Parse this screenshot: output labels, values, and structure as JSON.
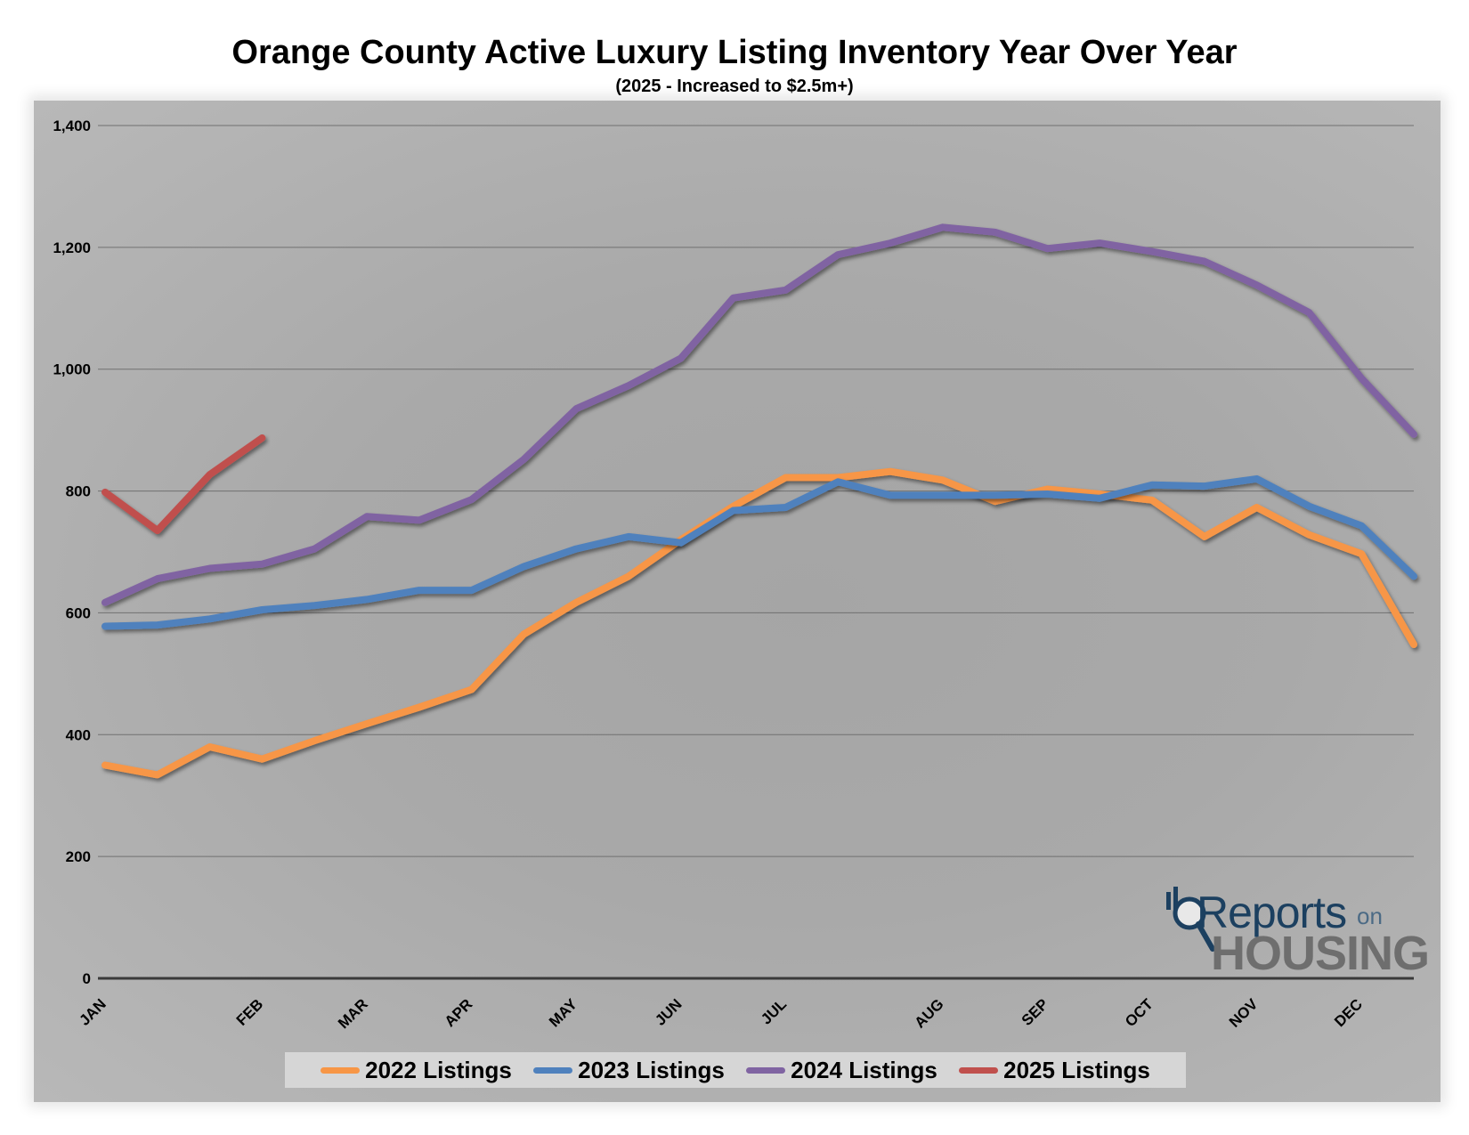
{
  "chart_data": {
    "type": "line",
    "title": "Orange County Active Luxury Listing Inventory Year Over Year",
    "subtitle": "(2025 - Increased to $2.5m+)",
    "xlabel": "",
    "ylabel": "",
    "ylim": [
      0,
      1400
    ],
    "yticks": [
      "0",
      "200",
      "400",
      "600",
      "800",
      "1,000",
      "1,200",
      "1,400"
    ],
    "ytick_values": [
      0,
      200,
      400,
      600,
      800,
      1000,
      1200,
      1400
    ],
    "month_labels": [
      "JAN",
      "FEB",
      "MAR",
      "APR",
      "MAY",
      "JUN",
      "JUL",
      "AUG",
      "SEP",
      "OCT",
      "NOV",
      "DEC"
    ],
    "month_label_index": [
      0,
      3,
      5,
      7,
      9,
      11,
      13,
      16,
      18,
      20,
      22,
      24
    ],
    "grid": true,
    "legend_position": "bottom",
    "series": [
      {
        "name": "2022 Listings",
        "color": "#f79646",
        "values": [
          350,
          334,
          380,
          360,
          390,
          418,
          445,
          474,
          565,
          617,
          660,
          720,
          775,
          822,
          822,
          832,
          818,
          783,
          803,
          795,
          785,
          725,
          773,
          728,
          697,
          548
        ]
      },
      {
        "name": "2023 Listings",
        "color": "#4f81bd",
        "values": [
          578,
          580,
          590,
          605,
          612,
          622,
          637,
          637,
          676,
          705,
          725,
          715,
          768,
          773,
          815,
          793,
          793,
          793,
          795,
          788,
          810,
          808,
          820,
          775,
          743,
          660
        ]
      },
      {
        "name": "2024 Listings",
        "color": "#8064a2",
        "values": [
          617,
          656,
          673,
          680,
          705,
          758,
          752,
          786,
          852,
          935,
          973,
          1018,
          1117,
          1130,
          1188,
          1207,
          1233,
          1225,
          1198,
          1207,
          1193,
          1177,
          1138,
          1093,
          985,
          893
        ]
      },
      {
        "name": "2025 Listings",
        "color": "#c0504d",
        "values": [
          798,
          735,
          827,
          887
        ]
      }
    ]
  },
  "logo": {
    "reports": "Reports",
    "on": "on",
    "housing": "HOUSING"
  }
}
